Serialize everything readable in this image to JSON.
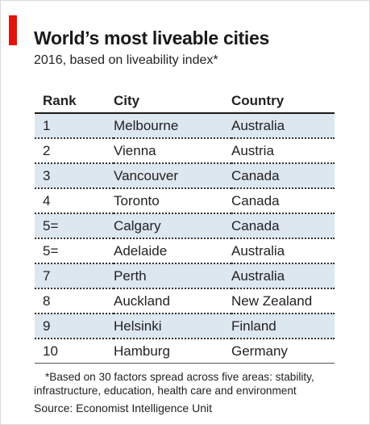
{
  "title": "World’s most liveable cities",
  "subtitle": "2016, based on liveability index*",
  "columns": [
    "Rank",
    "City",
    "Country"
  ],
  "accent_color": "#e3120b",
  "row_stripe_color": "#dde7f0",
  "chart_data": {
    "type": "table",
    "title": "World’s most liveable cities",
    "subtitle": "2016, based on liveability index*",
    "columns": [
      "Rank",
      "City",
      "Country"
    ],
    "rows": [
      [
        "1",
        "Melbourne",
        "Australia"
      ],
      [
        "2",
        "Vienna",
        "Austria"
      ],
      [
        "3",
        "Vancouver",
        "Canada"
      ],
      [
        "4",
        "Toronto",
        "Canada"
      ],
      [
        "5=",
        "Calgary",
        "Canada"
      ],
      [
        "5=",
        "Adelaide",
        "Australia"
      ],
      [
        "7",
        "Perth",
        "Australia"
      ],
      [
        "8",
        "Auckland",
        "New Zealand"
      ],
      [
        "9",
        "Helsinki",
        "Finland"
      ],
      [
        "10",
        "Hamburg",
        "Germany"
      ]
    ]
  },
  "footnote": "*Based on 30 factors spread across five areas: stability, infrastructure, education, health care and environment",
  "source": "Source: Economist Intelligence Unit"
}
